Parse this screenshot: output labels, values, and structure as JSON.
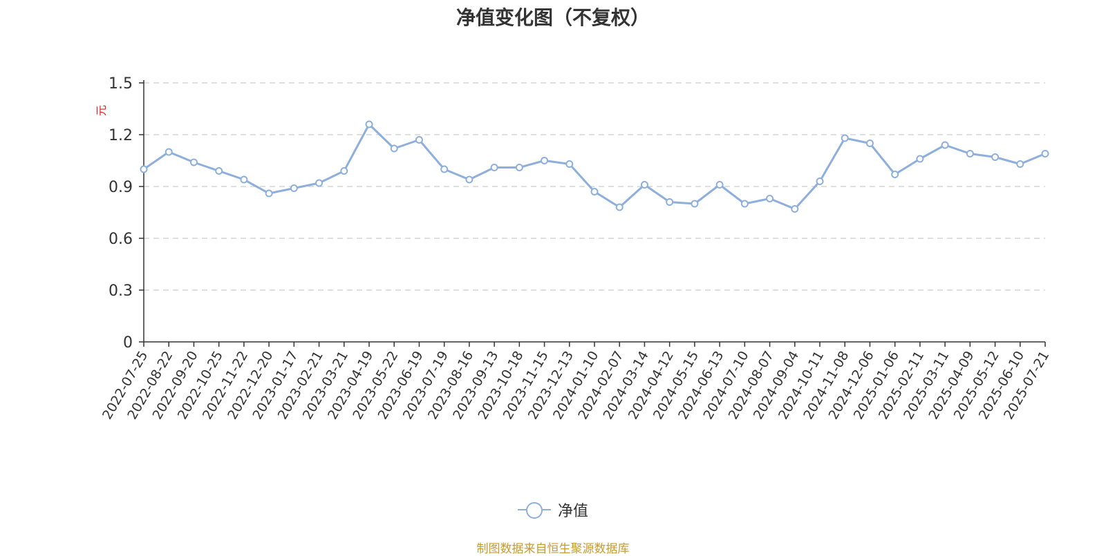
{
  "chart_data": {
    "type": "line",
    "title": "净值变化图（不复权）",
    "ylabel": "元",
    "xlabel": "",
    "ylim": [
      0,
      1.5
    ],
    "yticks": [
      "0",
      "0.3",
      "0.6",
      "0.9",
      "1.2",
      "1.5"
    ],
    "grid": true,
    "legend_placement": "bottom-center",
    "source_note": "制图数据来自恒生聚源数据库",
    "colors": {
      "series": "#8eafdc",
      "unit_label": "#e02020",
      "source_note": "#c89b2e",
      "grid": "#cccccc"
    },
    "x": [
      "2022-07-25",
      "2022-08-22",
      "2022-09-20",
      "2022-10-25",
      "2022-11-22",
      "2022-12-20",
      "2023-01-17",
      "2023-02-21",
      "2023-03-21",
      "2023-04-19",
      "2023-05-22",
      "2023-06-19",
      "2023-07-19",
      "2023-08-16",
      "2023-09-13",
      "2023-10-18",
      "2023-11-15",
      "2023-12-13",
      "2024-01-10",
      "2024-02-07",
      "2024-03-14",
      "2024-04-12",
      "2024-05-15",
      "2024-06-13",
      "2024-07-10",
      "2024-08-07",
      "2024-09-04",
      "2024-10-11",
      "2024-11-08",
      "2024-12-06",
      "2025-01-06",
      "2025-02-11",
      "2025-03-11",
      "2025-04-09",
      "2025-05-12",
      "2025-06-10",
      "2025-07-21"
    ],
    "series": [
      {
        "name": "净值",
        "values": [
          1.0,
          1.1,
          1.04,
          0.99,
          0.94,
          0.86,
          0.89,
          0.92,
          0.99,
          1.26,
          1.12,
          1.17,
          1.0,
          0.94,
          1.01,
          1.01,
          1.05,
          1.03,
          0.87,
          0.78,
          0.91,
          0.81,
          0.8,
          0.91,
          0.8,
          0.83,
          0.77,
          0.93,
          1.18,
          1.15,
          0.97,
          1.06,
          1.14,
          1.09,
          1.07,
          1.03,
          1.09
        ]
      }
    ]
  }
}
